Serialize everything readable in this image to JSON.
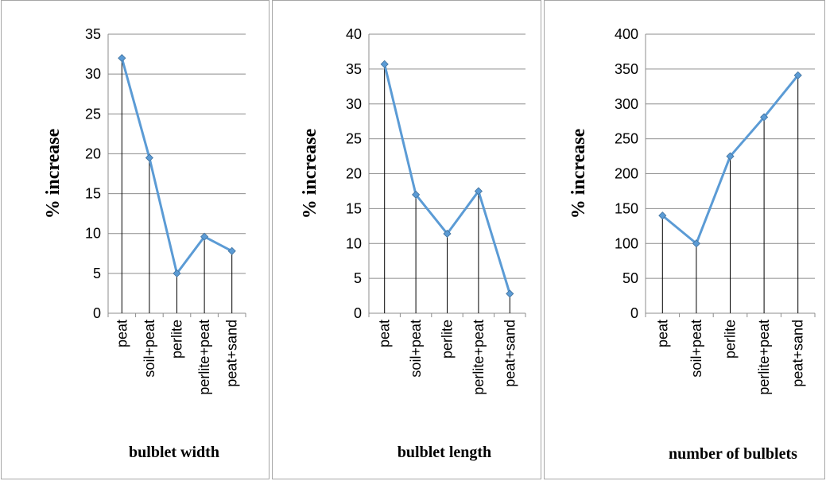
{
  "colors": {
    "series_line": "#5b9bd5",
    "marker": "#5b9bd5"
  },
  "chart_data": [
    {
      "type": "line",
      "categories": [
        "peat",
        "soil+peat",
        "perlite",
        "perlite+peat",
        "peat+sand"
      ],
      "series": [
        {
          "values": [
            32,
            19.5,
            5,
            9.6,
            7.8
          ]
        }
      ],
      "ylabel": "% increase",
      "xlabel": "bulblet width",
      "ylim": [
        0,
        35
      ],
      "yticks": [
        0,
        5,
        10,
        15,
        20,
        25,
        30,
        35
      ],
      "grid": true,
      "drop_lines": true
    },
    {
      "type": "line",
      "categories": [
        "peat",
        "soil+peat",
        "perlite",
        "perlite+peat",
        "peat+sand"
      ],
      "series": [
        {
          "values": [
            35.7,
            17,
            11.4,
            17.5,
            2.8
          ]
        }
      ],
      "ylabel": "% increase",
      "xlabel": "bulblet length",
      "ylim": [
        0,
        40
      ],
      "yticks": [
        0,
        5,
        10,
        15,
        20,
        25,
        30,
        35,
        40
      ],
      "grid": true,
      "drop_lines": true
    },
    {
      "type": "line",
      "categories": [
        "peat",
        "soil+peat",
        "perlite",
        "perlite+peat",
        "peat+sand"
      ],
      "series": [
        {
          "values": [
            140,
            100,
            225,
            281,
            341
          ]
        }
      ],
      "ylabel": "% increase",
      "xlabel": "number of bulblets",
      "ylim": [
        0,
        400
      ],
      "yticks": [
        0,
        50,
        100,
        150,
        200,
        250,
        300,
        350,
        400
      ],
      "grid": true,
      "drop_lines": true
    }
  ]
}
